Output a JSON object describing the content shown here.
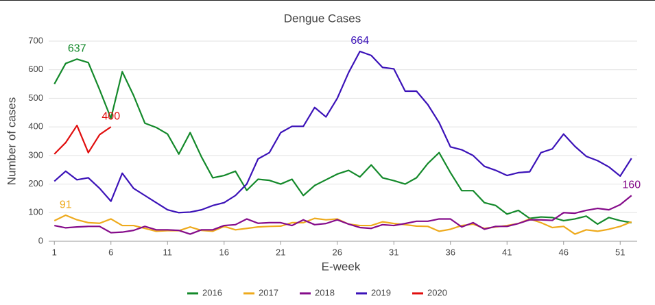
{
  "chart_data": {
    "type": "line",
    "title": "Dengue Cases",
    "x_label": "E-week",
    "y_label": "Number of cases",
    "x": [
      1,
      2,
      3,
      4,
      5,
      6,
      7,
      8,
      9,
      10,
      11,
      12,
      13,
      14,
      15,
      16,
      17,
      18,
      19,
      20,
      21,
      22,
      23,
      24,
      25,
      26,
      27,
      28,
      29,
      30,
      31,
      32,
      33,
      34,
      35,
      36,
      37,
      38,
      39,
      40,
      41,
      42,
      43,
      44,
      45,
      46,
      47,
      48,
      49,
      50,
      51,
      52
    ],
    "xlim": [
      0.5,
      52.5
    ],
    "xticks": [
      1,
      6,
      11,
      16,
      21,
      26,
      31,
      36,
      41,
      46,
      51
    ],
    "ylim": [
      0,
      700
    ],
    "yticks": [
      0,
      100,
      200,
      300,
      400,
      500,
      600,
      700
    ],
    "grid": true,
    "legend": "bottom",
    "series": [
      {
        "name": "2016",
        "color": "#13892a",
        "values": [
          550,
          622,
          637,
          625,
          530,
          430,
          593,
          510,
          413,
          398,
          375,
          305,
          380,
          295,
          222,
          230,
          245,
          178,
          217,
          213,
          200,
          217,
          160,
          195,
          215,
          235,
          248,
          225,
          267,
          222,
          212,
          200,
          222,
          272,
          310,
          240,
          177,
          177,
          135,
          125,
          95,
          108,
          80,
          85,
          83,
          72,
          78,
          88,
          60,
          83,
          72,
          65
        ],
        "value_labels": [
          null,
          null,
          "637",
          null,
          null,
          null,
          null,
          null,
          null,
          null,
          null,
          null,
          null,
          null,
          null,
          null,
          null,
          null,
          null,
          null,
          null,
          null,
          null,
          null,
          null,
          null,
          null,
          null,
          null,
          null,
          null,
          null,
          null,
          null,
          null,
          null,
          null,
          null,
          null,
          null,
          null,
          null,
          null,
          null,
          null,
          null,
          null,
          null,
          null,
          null,
          null,
          null
        ]
      },
      {
        "name": "2017",
        "color": "#eeaa1c",
        "values": [
          72,
          91,
          75,
          65,
          63,
          78,
          55,
          55,
          45,
          35,
          37,
          37,
          50,
          38,
          35,
          52,
          40,
          45,
          50,
          52,
          53,
          65,
          65,
          80,
          75,
          78,
          60,
          55,
          55,
          68,
          62,
          58,
          53,
          52,
          35,
          42,
          55,
          60,
          45,
          50,
          55,
          62,
          78,
          65,
          48,
          52,
          25,
          40,
          35,
          42,
          52,
          68
        ],
        "value_labels": [
          null,
          "91",
          null,
          null,
          null,
          null,
          null,
          null,
          null,
          null,
          null,
          null,
          null,
          null,
          null,
          null,
          null,
          null,
          null,
          null,
          null,
          null,
          null,
          null,
          null,
          null,
          null,
          null,
          null,
          null,
          null,
          null,
          null,
          null,
          null,
          null,
          null,
          null,
          null,
          null,
          null,
          null,
          null,
          null,
          null,
          null,
          null,
          null,
          null,
          null,
          null,
          null
        ]
      },
      {
        "name": "2018",
        "color": "#850b8a",
        "values": [
          55,
          47,
          50,
          52,
          52,
          30,
          32,
          38,
          52,
          40,
          40,
          38,
          25,
          40,
          40,
          55,
          58,
          78,
          63,
          65,
          65,
          55,
          75,
          58,
          62,
          75,
          60,
          48,
          45,
          58,
          55,
          62,
          70,
          70,
          78,
          78,
          50,
          65,
          42,
          52,
          52,
          62,
          75,
          75,
          73,
          100,
          98,
          108,
          115,
          110,
          128,
          160
        ],
        "value_labels": [
          null,
          null,
          null,
          null,
          null,
          null,
          null,
          null,
          null,
          null,
          null,
          null,
          null,
          null,
          null,
          null,
          null,
          null,
          null,
          null,
          null,
          null,
          null,
          null,
          null,
          null,
          null,
          null,
          null,
          null,
          null,
          null,
          null,
          null,
          null,
          null,
          null,
          null,
          null,
          null,
          null,
          null,
          null,
          null,
          null,
          null,
          null,
          null,
          null,
          null,
          null,
          "160"
        ]
      },
      {
        "name": "2019",
        "color": "#3b12b8",
        "values": [
          210,
          245,
          215,
          222,
          185,
          140,
          238,
          185,
          160,
          135,
          110,
          100,
          102,
          110,
          125,
          135,
          160,
          200,
          288,
          310,
          380,
          402,
          402,
          468,
          435,
          500,
          590,
          664,
          650,
          608,
          603,
          525,
          525,
          478,
          415,
          330,
          320,
          300,
          262,
          248,
          230,
          240,
          243,
          310,
          323,
          375,
          332,
          297,
          282,
          260,
          228,
          290
        ],
        "value_labels": [
          null,
          null,
          null,
          null,
          null,
          null,
          null,
          null,
          null,
          null,
          null,
          null,
          null,
          null,
          null,
          null,
          null,
          null,
          null,
          null,
          null,
          null,
          null,
          null,
          null,
          null,
          null,
          "664",
          null,
          null,
          null,
          null,
          null,
          null,
          null,
          null,
          null,
          null,
          null,
          null,
          null,
          null,
          null,
          null,
          null,
          null,
          null,
          null,
          null,
          null,
          null,
          null
        ]
      },
      {
        "name": "2020",
        "color": "#e00d0d",
        "values": [
          305,
          345,
          405,
          310,
          373,
          400,
          null,
          null,
          null,
          null,
          null,
          null,
          null,
          null,
          null,
          null,
          null,
          null,
          null,
          null,
          null,
          null,
          null,
          null,
          null,
          null,
          null,
          null,
          null,
          null,
          null,
          null,
          null,
          null,
          null,
          null,
          null,
          null,
          null,
          null,
          null,
          null,
          null,
          null,
          null,
          null,
          null,
          null,
          null,
          null,
          null,
          null
        ],
        "value_labels": [
          null,
          null,
          null,
          null,
          null,
          "400",
          null,
          null,
          null,
          null,
          null,
          null,
          null,
          null,
          null,
          null,
          null,
          null,
          null,
          null,
          null,
          null,
          null,
          null,
          null,
          null,
          null,
          null,
          null,
          null,
          null,
          null,
          null,
          null,
          null,
          null,
          null,
          null,
          null,
          null,
          null,
          null,
          null,
          null,
          null,
          null,
          null,
          null,
          null,
          null,
          null,
          null
        ]
      }
    ]
  }
}
